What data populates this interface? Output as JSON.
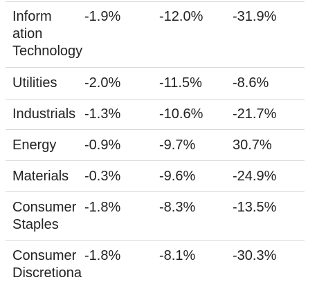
{
  "rows": [
    {
      "sector_lines": [
        "Inform",
        "ation",
        "Technology"
      ],
      "c1": "-1.9%",
      "c2": "-12.0%",
      "c3": "-31.9%"
    },
    {
      "sector_lines": [
        "Utilities"
      ],
      "c1": "-2.0%",
      "c2": "-11.5%",
      "c3": "-8.6%"
    },
    {
      "sector_lines": [
        "Industrials"
      ],
      "c1": "-1.3%",
      "c2": "-10.6%",
      "c3": "-21.7%"
    },
    {
      "sector_lines": [
        "Energy"
      ],
      "c1": "-0.9%",
      "c2": "-9.7%",
      "c3": "30.7%"
    },
    {
      "sector_lines": [
        "Materials"
      ],
      "c1": "-0.3%",
      "c2": "-9.6%",
      "c3": "-24.9%"
    },
    {
      "sector_lines": [
        "Consumer",
        "Staples"
      ],
      "c1": "-1.8%",
      "c2": "-8.3%",
      "c3": "-13.5%"
    },
    {
      "sector_lines": [
        "Consumer",
        "Discretiona"
      ],
      "c1": "-1.8%",
      "c2": "-8.1%",
      "c3": "-30.3%"
    }
  ]
}
